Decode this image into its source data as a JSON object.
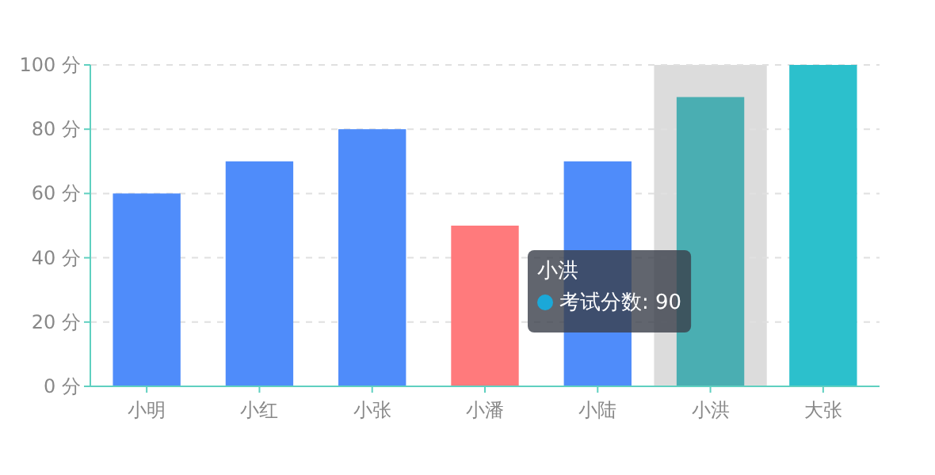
{
  "chart_data": {
    "type": "bar",
    "categories": [
      "小明",
      "小红",
      "小张",
      "小潘",
      "小陆",
      "小洪",
      "大张"
    ],
    "series": [
      {
        "values": [
          60,
          70,
          80,
          50,
          70,
          90,
          100
        ],
        "colors": [
          "#4f8cfa",
          "#4f8cfa",
          "#4f8cfa",
          "#ff7a7c",
          "#4f8cfa",
          "#4aaeb2",
          "#2cc0cc"
        ]
      }
    ],
    "ylim": [
      0,
      100
    ],
    "yticks": [
      {
        "value": 0,
        "label": "0 分"
      },
      {
        "value": 20,
        "label": "20 分"
      },
      {
        "value": 40,
        "label": "40 分"
      },
      {
        "value": 60,
        "label": "60 分"
      },
      {
        "value": 80,
        "label": "80 分"
      },
      {
        "value": 100,
        "label": "100 分"
      }
    ],
    "grid": "y",
    "bands": [
      {
        "axis": "x",
        "from": "小洪",
        "to": "小洪",
        "color": "#dcdcdc"
      }
    ],
    "annotations": [
      "小洪",
      "考试分数: 90"
    ]
  }
}
